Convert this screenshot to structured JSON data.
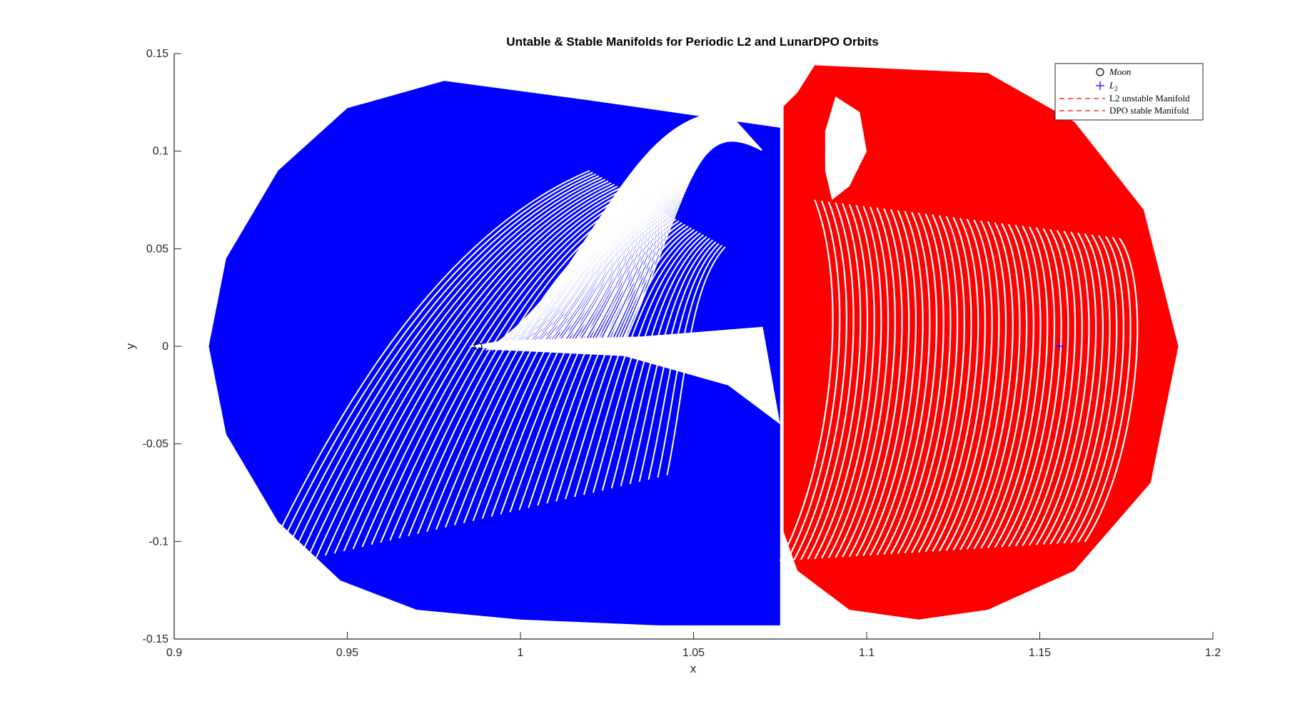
{
  "chart_data": {
    "type": "line",
    "title": "Untable & Stable Manifolds for Periodic L2 and LunarDPO Orbits",
    "xlabel": "x",
    "ylabel": "y",
    "xlim": [
      0.9,
      1.2
    ],
    "ylim": [
      -0.15,
      0.15
    ],
    "x_ticks": [
      0.9,
      0.95,
      1,
      1.05,
      1.1,
      1.15,
      1.2
    ],
    "x_tick_labels": [
      "0.9",
      "0.95",
      "1",
      "1.05",
      "1.1",
      "1.15",
      "1.2"
    ],
    "y_ticks": [
      -0.15,
      -0.1,
      -0.05,
      0,
      0.05,
      0.1,
      0.15
    ],
    "y_tick_labels": [
      "-0.15",
      "-0.1",
      "-0.05",
      "0",
      "0.05",
      "0.1",
      "0.15"
    ],
    "grid": false,
    "legend_position": "top-right",
    "legend": [
      {
        "label": "Moon",
        "italic": true,
        "marker": "circle",
        "color": "#000000"
      },
      {
        "label": "L",
        "subscript": "2",
        "italic": true,
        "marker": "plus",
        "color": "#0000ff"
      },
      {
        "label": "L2 unstable Manifold",
        "italic": false,
        "marker": "dashed-line",
        "color": "#ff0000"
      },
      {
        "label": "DPO stable Manifold",
        "italic": false,
        "marker": "dashed-line",
        "color": "#ff0000"
      }
    ],
    "points": [
      {
        "name": "Moon",
        "x": 0.9878,
        "y": 0,
        "marker": "circle"
      },
      {
        "name": "L2",
        "x": 1.1557,
        "y": 0,
        "marker": "plus"
      }
    ],
    "series": [
      {
        "name": "L2 unstable Manifold",
        "color": "#0000ff",
        "trajectory_count": 45,
        "outer_boundary": [
          [
            1.075,
            0.112
          ],
          [
            1.02,
            0.126
          ],
          [
            0.978,
            0.136
          ],
          [
            0.95,
            0.122
          ],
          [
            0.93,
            0.09
          ],
          [
            0.915,
            0.045
          ],
          [
            0.91,
            0
          ],
          [
            0.915,
            -0.045
          ],
          [
            0.93,
            -0.09
          ],
          [
            0.948,
            -0.12
          ],
          [
            0.97,
            -0.135
          ],
          [
            1.0,
            -0.14
          ],
          [
            1.04,
            -0.143
          ],
          [
            1.075,
            -0.143
          ]
        ],
        "inner_boundary": [
          [
            1.075,
            -0.04
          ],
          [
            1.06,
            -0.02
          ],
          [
            1.03,
            -0.005
          ],
          [
            0.995,
            -0.002
          ],
          [
            0.985,
            0
          ],
          [
            0.995,
            0.003
          ],
          [
            1.035,
            0.005
          ],
          [
            1.07,
            0.01
          ]
        ]
      },
      {
        "name": "DPO stable Manifold",
        "color": "#ff0000",
        "trajectory_count": 45,
        "outer_boundary": [
          [
            1.076,
            -0.095
          ],
          [
            1.076,
            0.123
          ],
          [
            1.08,
            0.13
          ],
          [
            1.085,
            0.144
          ],
          [
            1.11,
            0.142
          ],
          [
            1.135,
            0.14
          ],
          [
            1.16,
            0.115
          ],
          [
            1.18,
            0.07
          ],
          [
            1.19,
            0
          ],
          [
            1.182,
            -0.07
          ],
          [
            1.16,
            -0.115
          ],
          [
            1.135,
            -0.135
          ],
          [
            1.115,
            -0.14
          ],
          [
            1.095,
            -0.135
          ],
          [
            1.08,
            -0.115
          ],
          [
            1.076,
            -0.095
          ]
        ],
        "inner_boundary": [
          [
            1.091,
            0.128
          ],
          [
            1.098,
            0.12
          ],
          [
            1.1,
            0.1
          ],
          [
            1.095,
            0.082
          ],
          [
            1.09,
            0.075
          ],
          [
            1.088,
            0.09
          ],
          [
            1.088,
            0.11
          ]
        ]
      }
    ]
  }
}
